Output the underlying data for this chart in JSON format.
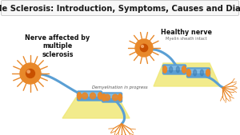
{
  "title": "Multiple Sclerosis: Introduction, Symptoms, Causes and Diagnosis",
  "title_fontsize": 7.2,
  "title_fontweight": "bold",
  "title_box_color": "#f7f7f7",
  "title_box_edge": "#cccccc",
  "bg_color": "#ffffff",
  "label_affected": "Nerve affected by\nmultiple\nsclerosis",
  "label_demyelin": "Demyelination in progress",
  "label_healthy": "Healthy nerve",
  "label_myelin": "Myelin sheath intact",
  "label_fontsize_main": 5.8,
  "label_fontsize_sub": 3.8,
  "neuron_body_color": "#e8882a",
  "center_color": "#c85000",
  "axon_color": "#5a9fd4",
  "myelin_blue": "#5a9fd4",
  "myelin_blue_dark": "#3a7ab0",
  "myelin_highlight": "#8cc4e8",
  "demyelin_color": "#e8882a",
  "yellow_bg": "#f0e878",
  "yellow_bg_light": "#f8f4a0"
}
